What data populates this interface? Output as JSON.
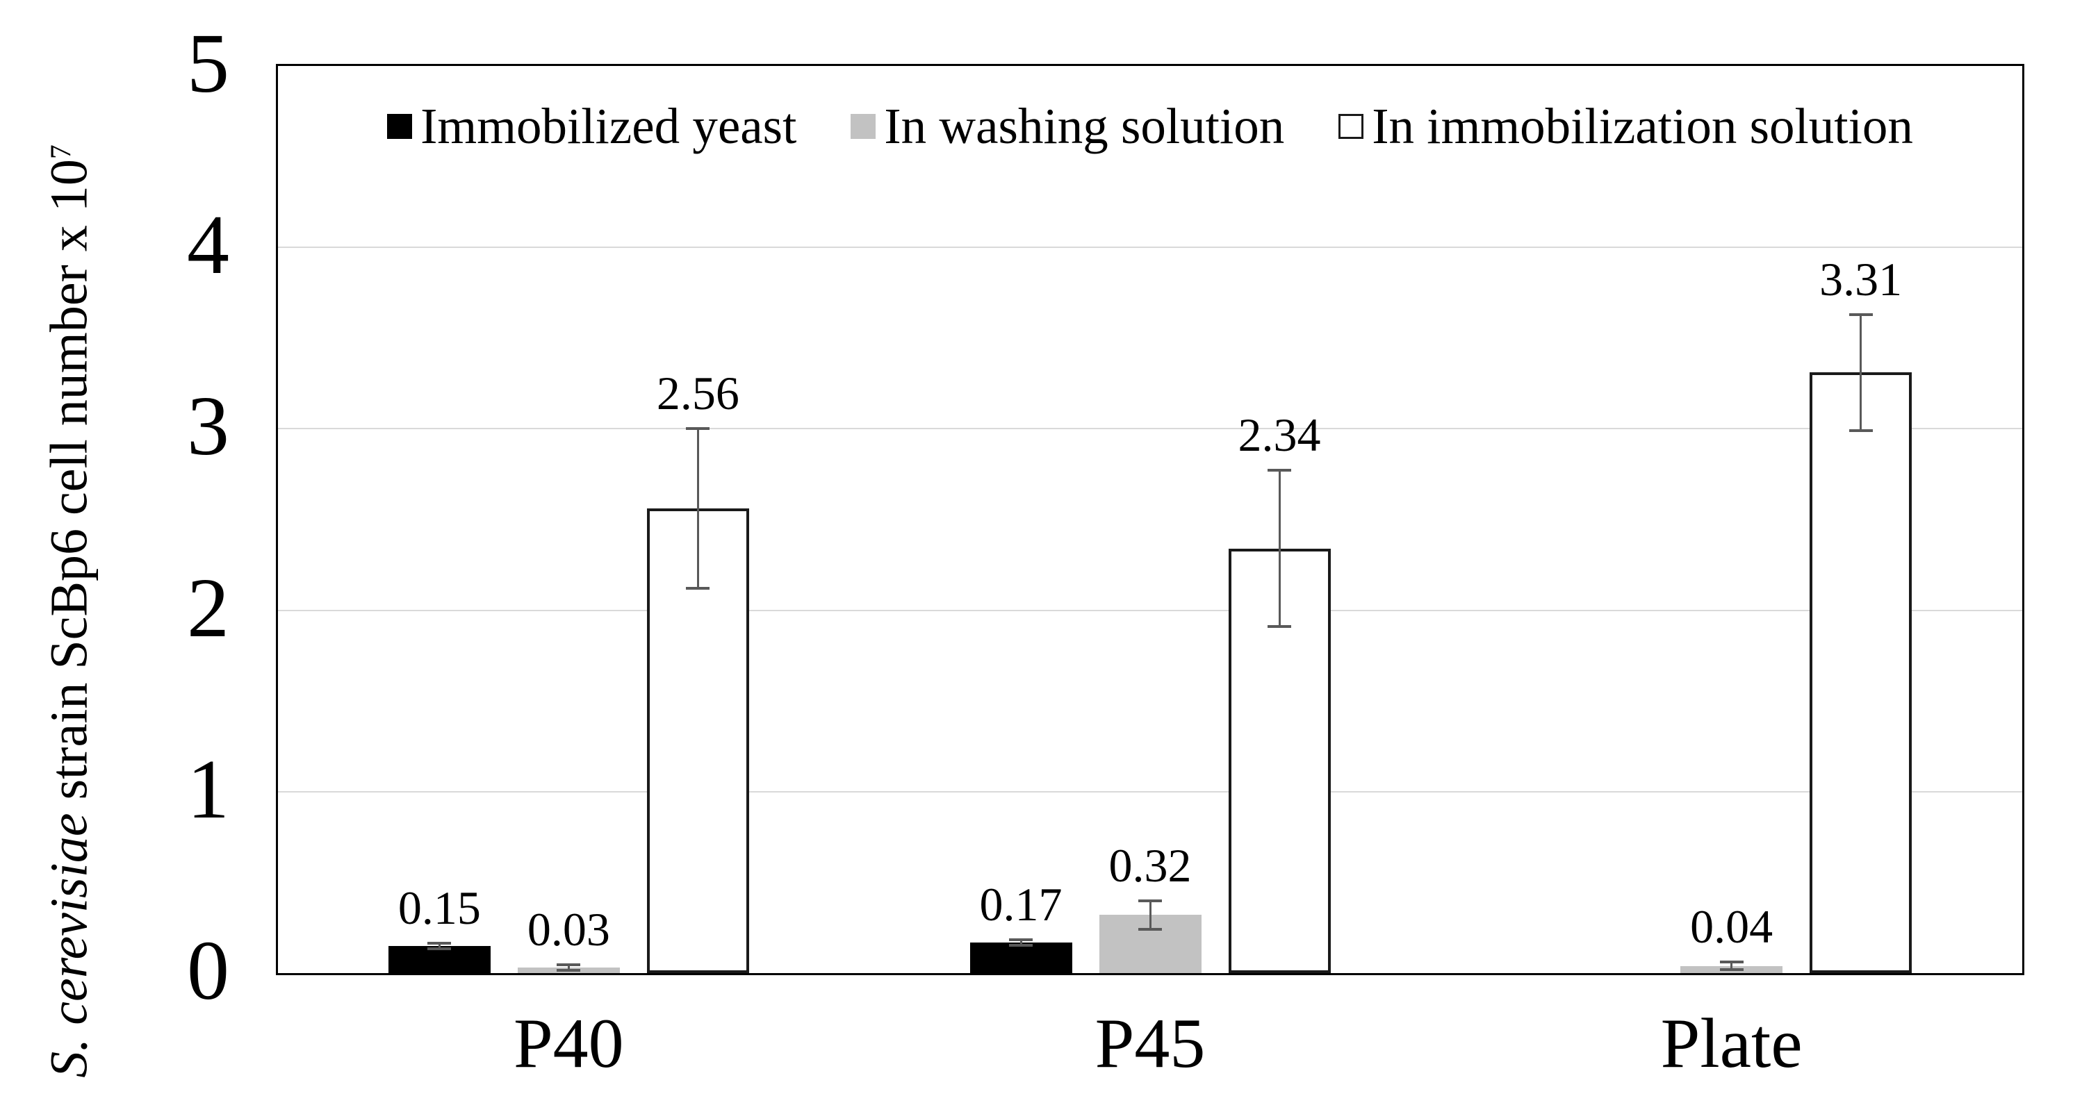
{
  "figure": {
    "y_axis": {
      "title_italic": "S. cerevisiae",
      "title_rest": " strain ScBp6 cell number x 10",
      "title_superscript": "7",
      "tick_labels": [
        "0",
        "1",
        "2",
        "3",
        "4",
        "5"
      ]
    }
  },
  "chart_data": {
    "type": "bar",
    "title": "",
    "xlabel": "",
    "ylabel": "S. cerevisiae strain ScBp6 cell number x 10^7",
    "ylim": [
      0,
      5
    ],
    "yticks": [
      0,
      1,
      2,
      3,
      4,
      5
    ],
    "grid": "horizontal",
    "legend_position": "top-center",
    "categories": [
      "P40",
      "P45",
      "Plate"
    ],
    "series": [
      {
        "name": "Immobilized yeast",
        "color": "#000000",
        "values": [
          0.15,
          0.17,
          null
        ],
        "errors": [
          0.015,
          0.015,
          null
        ],
        "data_labels": [
          "0.15",
          "0.17",
          ""
        ]
      },
      {
        "name": "In washing solution",
        "color": "#c2c2c2",
        "values": [
          0.03,
          0.32,
          0.04
        ],
        "errors": [
          0.015,
          0.08,
          0.02
        ],
        "data_labels": [
          "0.03",
          "0.32",
          "0.04"
        ]
      },
      {
        "name": "In immobilization solution",
        "color": "#ffffff",
        "border_color": "#1a1a1a",
        "values": [
          2.56,
          2.34,
          3.31
        ],
        "errors": [
          0.44,
          0.43,
          0.32
        ],
        "data_labels": [
          "2.56",
          "2.34",
          "3.31"
        ]
      }
    ],
    "colors": {
      "grid": "#d9d9d9",
      "axis": "#000000",
      "error_bar": "#595959"
    }
  }
}
